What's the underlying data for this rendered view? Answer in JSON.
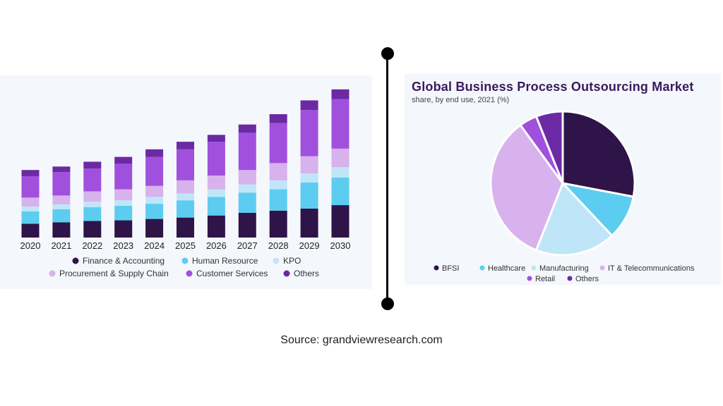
{
  "colors": {
    "finance": "#2e1448",
    "hr": "#5ccdf0",
    "kpo": "#bfe6f8",
    "procurement": "#d7b2ec",
    "customer": "#a150de",
    "others": "#6b2aa3"
  },
  "chart_data": [
    {
      "type": "bar",
      "stacked": true,
      "categories": [
        "2020",
        "2021",
        "2022",
        "2023",
        "2024",
        "2025",
        "2026",
        "2027",
        "2028",
        "2029",
        "2030"
      ],
      "series": [
        {
          "name": "Finance & Accounting",
          "color": "#2e1448",
          "values": [
            20,
            22,
            24,
            25,
            27,
            29,
            32,
            36,
            39,
            42,
            47
          ]
        },
        {
          "name": "Human Resource",
          "color": "#5ccdf0",
          "values": [
            18,
            19,
            20,
            21,
            22,
            25,
            27,
            29,
            31,
            38,
            40
          ]
        },
        {
          "name": "KPO",
          "color": "#bfe6f8",
          "values": [
            7,
            7,
            8,
            8,
            10,
            10,
            11,
            12,
            13,
            13,
            15
          ]
        },
        {
          "name": "Procurement & Supply Chain",
          "color": "#d7b2ec",
          "values": [
            13,
            13,
            15,
            16,
            16,
            19,
            20,
            21,
            25,
            25,
            27
          ]
        },
        {
          "name": "Customer Services",
          "color": "#a150de",
          "values": [
            31,
            34,
            33,
            37,
            42,
            45,
            49,
            54,
            58,
            67,
            72
          ]
        },
        {
          "name": "Others",
          "color": "#6b2aa3",
          "values": [
            9,
            8,
            10,
            10,
            11,
            11,
            10,
            12,
            13,
            14,
            14
          ]
        }
      ],
      "ylim": [
        0,
        225
      ],
      "grid": false,
      "legend_position": "bottom"
    },
    {
      "type": "pie",
      "title": "Global Business Process Outsourcing Market",
      "subtitle": "share, by end use, 2021 (%)",
      "slices": [
        {
          "name": "BFSI",
          "color": "#2e1448",
          "value": 28
        },
        {
          "name": "Healthcare",
          "color": "#5ccdf0",
          "value": 10
        },
        {
          "name": "Manufacturing",
          "color": "#bfe6f8",
          "value": 18
        },
        {
          "name": "IT & Telecommunications",
          "color": "#d7b2ec",
          "value": 34
        },
        {
          "name": "Retail",
          "color": "#a150de",
          "value": 4
        },
        {
          "name": "Others",
          "color": "#6b2aa3",
          "value": 6
        }
      ],
      "legend_position": "bottom"
    }
  ],
  "source": "Source: grandviewresearch.com"
}
